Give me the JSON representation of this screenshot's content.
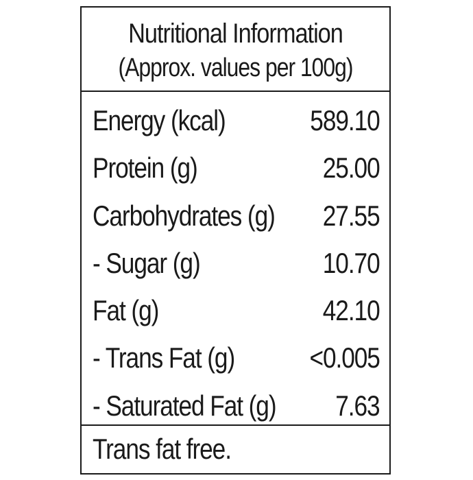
{
  "label": {
    "title": "Nutritional Information",
    "subtitle": "(Approx. values per 100g)",
    "rows": [
      {
        "name": "Energy (kcal)",
        "value": "589.10"
      },
      {
        "name": "Protein (g)",
        "value": "25.00"
      },
      {
        "name": "Carbohydrates (g)",
        "value": "27.55"
      },
      {
        "name": "- Sugar (g)",
        "value": "10.70"
      },
      {
        "name": "Fat (g)",
        "value": "42.10"
      },
      {
        "name": "- Trans Fat (g)",
        "value": "<0.005"
      },
      {
        "name": "- Saturated Fat (g)",
        "value": "7.63"
      }
    ],
    "footer": "Trans fat free."
  },
  "colors": {
    "text": "#1a1a1a",
    "border": "#1a1a1a",
    "background": "#ffffff"
  }
}
